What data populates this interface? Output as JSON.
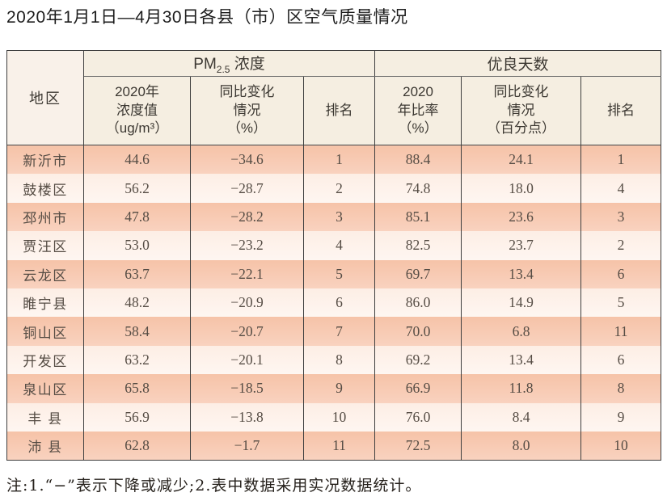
{
  "title": "2020年1月1日—4月30日各县（市）区空气质量情况",
  "table": {
    "headers": {
      "region": "地区",
      "pm_group": {
        "main": "PM",
        "sub": "2.5",
        "rest": " 浓度"
      },
      "days_group": "优良天数",
      "pm_value": "2020年\n浓度值\n（ug/m³）",
      "pm_change": "同比变化\n情况\n（%）",
      "pm_rank": "排名",
      "days_rate": "2020\n年比率\n（%）",
      "days_change": "同比变化\n情况\n（百分点）",
      "days_rank": "排名"
    },
    "col_keys": [
      "region",
      "pm-value",
      "pm-change",
      "pm-rank",
      "days-rate",
      "days-change",
      "days-rank"
    ],
    "rows": [
      [
        "新沂市",
        "44.6",
        "−34.6",
        "1",
        "88.4",
        "24.1",
        "1"
      ],
      [
        "鼓楼区",
        "56.2",
        "−28.7",
        "2",
        "74.8",
        "18.0",
        "4"
      ],
      [
        "邳州市",
        "47.8",
        "−28.2",
        "3",
        "85.1",
        "23.6",
        "3"
      ],
      [
        "贾汪区",
        "53.0",
        "−23.2",
        "4",
        "82.5",
        "23.7",
        "2"
      ],
      [
        "云龙区",
        "63.7",
        "−22.1",
        "5",
        "69.7",
        "13.4",
        "6"
      ],
      [
        "睢宁县",
        "48.2",
        "−20.9",
        "6",
        "86.0",
        "14.9",
        "5"
      ],
      [
        "铜山区",
        "58.4",
        "−20.7",
        "7",
        "70.0",
        "6.8",
        "11"
      ],
      [
        "开发区",
        "63.2",
        "−20.1",
        "8",
        "69.2",
        "13.4",
        "6"
      ],
      [
        "泉山区",
        "65.8",
        "−18.5",
        "9",
        "66.9",
        "11.8",
        "8"
      ],
      [
        "丰 县",
        "56.9",
        "−13.8",
        "10",
        "76.0",
        "8.4",
        "9"
      ],
      [
        "沛 县",
        "62.8",
        "−1.7",
        "11",
        "72.5",
        "8.0",
        "10"
      ]
    ]
  },
  "footnote": "注:1.“−”表示下降或减少;2.表中数据采用实况数据统计。",
  "colors": {
    "row_salmon": "#f6c3a8",
    "row_light": "#fdeee5",
    "header_cream": "#f5eee1",
    "region_header": "#f9f1e9",
    "border": "#3f3f3f",
    "text": "#554c44"
  }
}
